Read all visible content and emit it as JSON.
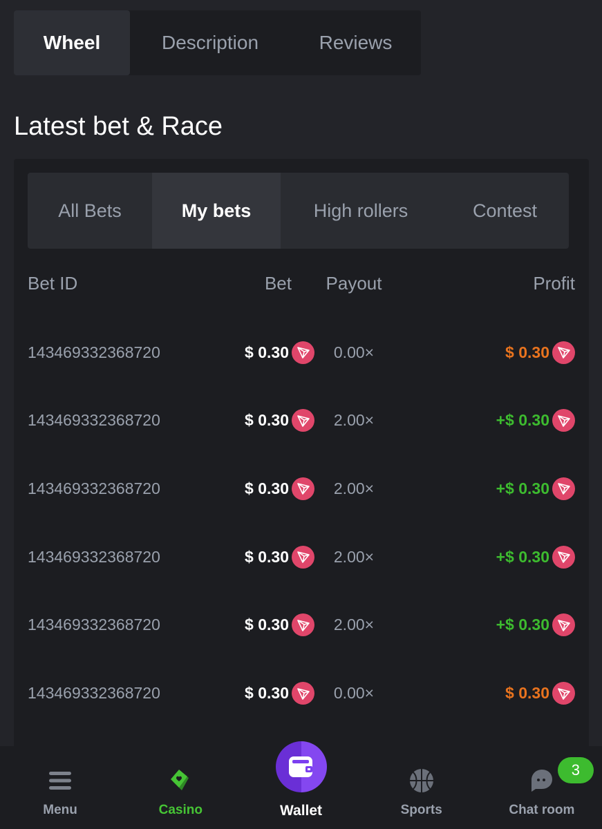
{
  "top_tabs": [
    {
      "label": "Wheel",
      "active": true
    },
    {
      "label": "Description"
    },
    {
      "label": "Reviews"
    }
  ],
  "section_title": "Latest bet & Race",
  "sub_tabs": [
    {
      "label": "All Bets"
    },
    {
      "label": "My bets",
      "active": true
    },
    {
      "label": "High rollers"
    },
    {
      "label": "Contest"
    }
  ],
  "table": {
    "headers": {
      "bet_id": "Bet ID",
      "bet": "Bet",
      "payout": "Payout",
      "profit": "Profit"
    },
    "rows": [
      {
        "id": "143469332368720",
        "bet": "$ 0.30",
        "payout": "0.00×",
        "profit": "$ 0.30",
        "status": "loss"
      },
      {
        "id": "143469332368720",
        "bet": "$ 0.30",
        "payout": "2.00×",
        "profit": "+$ 0.30",
        "status": "win"
      },
      {
        "id": "143469332368720",
        "bet": "$ 0.30",
        "payout": "2.00×",
        "profit": "+$ 0.30",
        "status": "win"
      },
      {
        "id": "143469332368720",
        "bet": "$ 0.30",
        "payout": "2.00×",
        "profit": "+$ 0.30",
        "status": "win"
      },
      {
        "id": "143469332368720",
        "bet": "$ 0.30",
        "payout": "2.00×",
        "profit": "+$ 0.30",
        "status": "win"
      },
      {
        "id": "143469332368720",
        "bet": "$ 0.30",
        "payout": "0.00×",
        "profit": "$ 0.30",
        "status": "loss"
      }
    ],
    "currency_icon": "tron-icon"
  },
  "colors": {
    "win": "#3dbb2f",
    "loss": "#e8731e",
    "accent": "#7b3ff0",
    "trx": "#e0466a"
  },
  "nav": {
    "menu": "Menu",
    "casino": "Casino",
    "wallet": "Wallet",
    "sports": "Sports",
    "chat": "Chat room",
    "chat_badge": "3"
  }
}
